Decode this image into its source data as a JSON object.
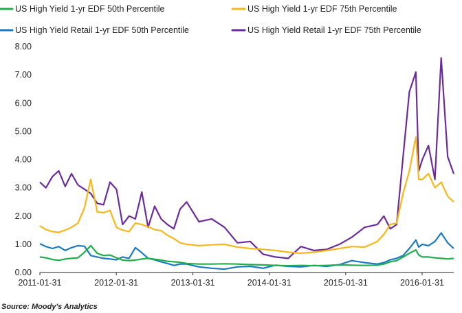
{
  "chart_data": {
    "type": "line",
    "title": "",
    "xlabel": "",
    "ylabel": "",
    "ylim": [
      0,
      8
    ],
    "xlim": [
      "2011-01-31",
      "2016-06-30"
    ],
    "yticks": [
      "0.00",
      "1.00",
      "2.00",
      "3.00",
      "4.00",
      "5.00",
      "6.00",
      "7.00",
      "8.00"
    ],
    "xticks": [
      "2011-01-31",
      "2012-01-31",
      "2013-01-31",
      "2014-01-31",
      "2015-01-31",
      "2016-01-31"
    ],
    "grid": false,
    "legend_position": "top",
    "source": "Source: Moody's Analytics",
    "series": [
      {
        "name": "US High Yield 1-yr EDF 50th Percentile",
        "color": "#1fae4b",
        "points": [
          [
            "2011-01-31",
            0.55
          ],
          [
            "2011-03-01",
            0.52
          ],
          [
            "2011-04-01",
            0.46
          ],
          [
            "2011-05-01",
            0.43
          ],
          [
            "2011-06-01",
            0.48
          ],
          [
            "2011-07-01",
            0.5
          ],
          [
            "2011-08-01",
            0.52
          ],
          [
            "2011-09-01",
            0.72
          ],
          [
            "2011-10-01",
            0.95
          ],
          [
            "2011-11-01",
            0.68
          ],
          [
            "2011-12-01",
            0.6
          ],
          [
            "2012-01-01",
            0.62
          ],
          [
            "2012-02-01",
            0.52
          ],
          [
            "2012-03-01",
            0.44
          ],
          [
            "2012-04-01",
            0.42
          ],
          [
            "2012-05-01",
            0.44
          ],
          [
            "2012-06-01",
            0.48
          ],
          [
            "2012-07-01",
            0.5
          ],
          [
            "2012-08-01",
            0.47
          ],
          [
            "2012-09-01",
            0.44
          ],
          [
            "2012-10-01",
            0.4
          ],
          [
            "2012-11-01",
            0.38
          ],
          [
            "2012-12-01",
            0.36
          ],
          [
            "2013-01-01",
            0.32
          ],
          [
            "2013-03-01",
            0.3
          ],
          [
            "2013-05-01",
            0.3
          ],
          [
            "2013-07-01",
            0.31
          ],
          [
            "2013-09-01",
            0.3
          ],
          [
            "2013-11-01",
            0.28
          ],
          [
            "2014-01-01",
            0.27
          ],
          [
            "2014-03-01",
            0.25
          ],
          [
            "2014-05-01",
            0.24
          ],
          [
            "2014-07-01",
            0.25
          ],
          [
            "2014-09-01",
            0.24
          ],
          [
            "2014-11-01",
            0.25
          ],
          [
            "2015-01-01",
            0.27
          ],
          [
            "2015-03-01",
            0.26
          ],
          [
            "2015-05-01",
            0.25
          ],
          [
            "2015-07-01",
            0.26
          ],
          [
            "2015-08-01",
            0.3
          ],
          [
            "2015-09-01",
            0.38
          ],
          [
            "2015-10-01",
            0.42
          ],
          [
            "2015-11-01",
            0.55
          ],
          [
            "2015-12-01",
            0.68
          ],
          [
            "2016-01-01",
            0.8
          ],
          [
            "2016-01-15",
            0.62
          ],
          [
            "2016-02-01",
            0.55
          ],
          [
            "2016-03-01",
            0.55
          ],
          [
            "2016-04-01",
            0.52
          ],
          [
            "2016-05-01",
            0.5
          ],
          [
            "2016-06-01",
            0.48
          ],
          [
            "2016-06-30",
            0.5
          ]
        ]
      },
      {
        "name": "US High Yield 1-yr EDF 75th Percentile",
        "color": "#f5b71a",
        "points": [
          [
            "2011-01-31",
            1.65
          ],
          [
            "2011-03-01",
            1.52
          ],
          [
            "2011-04-01",
            1.45
          ],
          [
            "2011-05-01",
            1.42
          ],
          [
            "2011-06-01",
            1.5
          ],
          [
            "2011-07-01",
            1.6
          ],
          [
            "2011-08-01",
            1.75
          ],
          [
            "2011-09-01",
            2.3
          ],
          [
            "2011-10-01",
            3.3
          ],
          [
            "2011-11-01",
            2.15
          ],
          [
            "2011-12-01",
            2.12
          ],
          [
            "2012-01-01",
            2.2
          ],
          [
            "2012-02-01",
            1.6
          ],
          [
            "2012-03-01",
            1.5
          ],
          [
            "2012-04-01",
            1.45
          ],
          [
            "2012-05-01",
            1.75
          ],
          [
            "2012-06-01",
            1.7
          ],
          [
            "2012-07-01",
            1.62
          ],
          [
            "2012-08-01",
            1.52
          ],
          [
            "2012-09-01",
            1.48
          ],
          [
            "2012-10-01",
            1.32
          ],
          [
            "2012-11-01",
            1.2
          ],
          [
            "2012-12-01",
            1.05
          ],
          [
            "2013-01-01",
            1.0
          ],
          [
            "2013-03-01",
            0.95
          ],
          [
            "2013-05-01",
            0.98
          ],
          [
            "2013-07-01",
            1.0
          ],
          [
            "2013-09-01",
            0.9
          ],
          [
            "2013-11-01",
            0.85
          ],
          [
            "2014-01-01",
            0.82
          ],
          [
            "2014-03-01",
            0.78
          ],
          [
            "2014-05-01",
            0.72
          ],
          [
            "2014-07-01",
            0.68
          ],
          [
            "2014-09-01",
            0.72
          ],
          [
            "2014-11-01",
            0.78
          ],
          [
            "2015-01-01",
            0.85
          ],
          [
            "2015-03-01",
            0.92
          ],
          [
            "2015-05-01",
            0.9
          ],
          [
            "2015-07-01",
            1.1
          ],
          [
            "2015-08-01",
            1.35
          ],
          [
            "2015-09-01",
            1.7
          ],
          [
            "2015-10-01",
            1.75
          ],
          [
            "2015-11-01",
            2.8
          ],
          [
            "2015-12-01",
            3.6
          ],
          [
            "2016-01-01",
            4.8
          ],
          [
            "2016-01-15",
            3.3
          ],
          [
            "2016-02-01",
            3.3
          ],
          [
            "2016-03-01",
            3.5
          ],
          [
            "2016-04-01",
            3.0
          ],
          [
            "2016-05-01",
            3.2
          ],
          [
            "2016-06-01",
            2.7
          ],
          [
            "2016-06-30",
            2.5
          ]
        ]
      },
      {
        "name": "US High Yield Retail 1-yr EDF 50th Percentile",
        "color": "#1a7ac0",
        "points": [
          [
            "2011-01-31",
            1.02
          ],
          [
            "2011-03-01",
            0.92
          ],
          [
            "2011-04-01",
            0.85
          ],
          [
            "2011-05-01",
            0.92
          ],
          [
            "2011-06-01",
            0.78
          ],
          [
            "2011-07-01",
            0.88
          ],
          [
            "2011-08-01",
            0.95
          ],
          [
            "2011-09-01",
            0.93
          ],
          [
            "2011-10-01",
            0.6
          ],
          [
            "2011-11-01",
            0.55
          ],
          [
            "2011-12-01",
            0.5
          ],
          [
            "2012-01-01",
            0.48
          ],
          [
            "2012-02-01",
            0.45
          ],
          [
            "2012-03-01",
            0.55
          ],
          [
            "2012-04-01",
            0.5
          ],
          [
            "2012-05-01",
            0.88
          ],
          [
            "2012-06-01",
            0.7
          ],
          [
            "2012-07-01",
            0.5
          ],
          [
            "2012-08-01",
            0.45
          ],
          [
            "2012-09-01",
            0.38
          ],
          [
            "2012-10-01",
            0.32
          ],
          [
            "2012-11-01",
            0.25
          ],
          [
            "2012-12-01",
            0.3
          ],
          [
            "2013-01-01",
            0.3
          ],
          [
            "2013-03-01",
            0.2
          ],
          [
            "2013-05-01",
            0.15
          ],
          [
            "2013-07-01",
            0.12
          ],
          [
            "2013-09-01",
            0.2
          ],
          [
            "2013-11-01",
            0.22
          ],
          [
            "2014-01-01",
            0.15
          ],
          [
            "2014-03-01",
            0.26
          ],
          [
            "2014-05-01",
            0.22
          ],
          [
            "2014-07-01",
            0.2
          ],
          [
            "2014-09-01",
            0.25
          ],
          [
            "2014-11-01",
            0.22
          ],
          [
            "2015-01-01",
            0.28
          ],
          [
            "2015-03-01",
            0.42
          ],
          [
            "2015-05-01",
            0.35
          ],
          [
            "2015-07-01",
            0.3
          ],
          [
            "2015-08-01",
            0.35
          ],
          [
            "2015-09-01",
            0.45
          ],
          [
            "2015-10-01",
            0.5
          ],
          [
            "2015-11-01",
            0.6
          ],
          [
            "2015-12-01",
            0.85
          ],
          [
            "2016-01-01",
            1.15
          ],
          [
            "2016-01-15",
            0.9
          ],
          [
            "2016-02-01",
            1.0
          ],
          [
            "2016-03-01",
            0.95
          ],
          [
            "2016-04-01",
            1.1
          ],
          [
            "2016-05-01",
            1.4
          ],
          [
            "2016-06-01",
            1.05
          ],
          [
            "2016-06-30",
            0.85
          ]
        ]
      },
      {
        "name": "US High Yield Retail 1-yr EDF 75th Percentile",
        "color": "#6b2c9a",
        "points": [
          [
            "2011-01-31",
            3.2
          ],
          [
            "2011-03-01",
            3.0
          ],
          [
            "2011-04-01",
            3.4
          ],
          [
            "2011-05-01",
            3.6
          ],
          [
            "2011-06-01",
            3.05
          ],
          [
            "2011-07-01",
            3.5
          ],
          [
            "2011-08-01",
            3.1
          ],
          [
            "2011-09-01",
            2.95
          ],
          [
            "2011-10-01",
            2.8
          ],
          [
            "2011-11-01",
            2.45
          ],
          [
            "2011-12-01",
            2.4
          ],
          [
            "2012-01-01",
            3.2
          ],
          [
            "2012-02-01",
            2.95
          ],
          [
            "2012-03-01",
            1.7
          ],
          [
            "2012-04-01",
            2.0
          ],
          [
            "2012-05-01",
            1.9
          ],
          [
            "2012-06-01",
            2.85
          ],
          [
            "2012-07-01",
            1.6
          ],
          [
            "2012-08-01",
            2.35
          ],
          [
            "2012-09-01",
            1.9
          ],
          [
            "2012-10-01",
            1.7
          ],
          [
            "2012-11-01",
            1.55
          ],
          [
            "2012-12-01",
            2.25
          ],
          [
            "2013-01-01",
            2.5
          ],
          [
            "2013-03-01",
            1.8
          ],
          [
            "2013-05-01",
            1.9
          ],
          [
            "2013-07-01",
            1.6
          ],
          [
            "2013-09-01",
            1.05
          ],
          [
            "2013-11-01",
            1.1
          ],
          [
            "2014-01-01",
            0.65
          ],
          [
            "2014-03-01",
            0.55
          ],
          [
            "2014-05-01",
            0.5
          ],
          [
            "2014-07-01",
            0.92
          ],
          [
            "2014-09-01",
            0.78
          ],
          [
            "2014-11-01",
            0.82
          ],
          [
            "2015-01-01",
            1.0
          ],
          [
            "2015-03-01",
            1.25
          ],
          [
            "2015-05-01",
            1.6
          ],
          [
            "2015-07-01",
            1.7
          ],
          [
            "2015-08-01",
            2.0
          ],
          [
            "2015-09-01",
            1.55
          ],
          [
            "2015-10-01",
            1.7
          ],
          [
            "2015-11-01",
            4.1
          ],
          [
            "2015-12-01",
            6.4
          ],
          [
            "2016-01-01",
            7.1
          ],
          [
            "2016-01-15",
            3.6
          ],
          [
            "2016-02-01",
            4.0
          ],
          [
            "2016-03-01",
            4.5
          ],
          [
            "2016-04-01",
            3.3
          ],
          [
            "2016-05-01",
            7.6
          ],
          [
            "2016-06-01",
            4.1
          ],
          [
            "2016-06-30",
            3.5
          ]
        ]
      }
    ]
  }
}
